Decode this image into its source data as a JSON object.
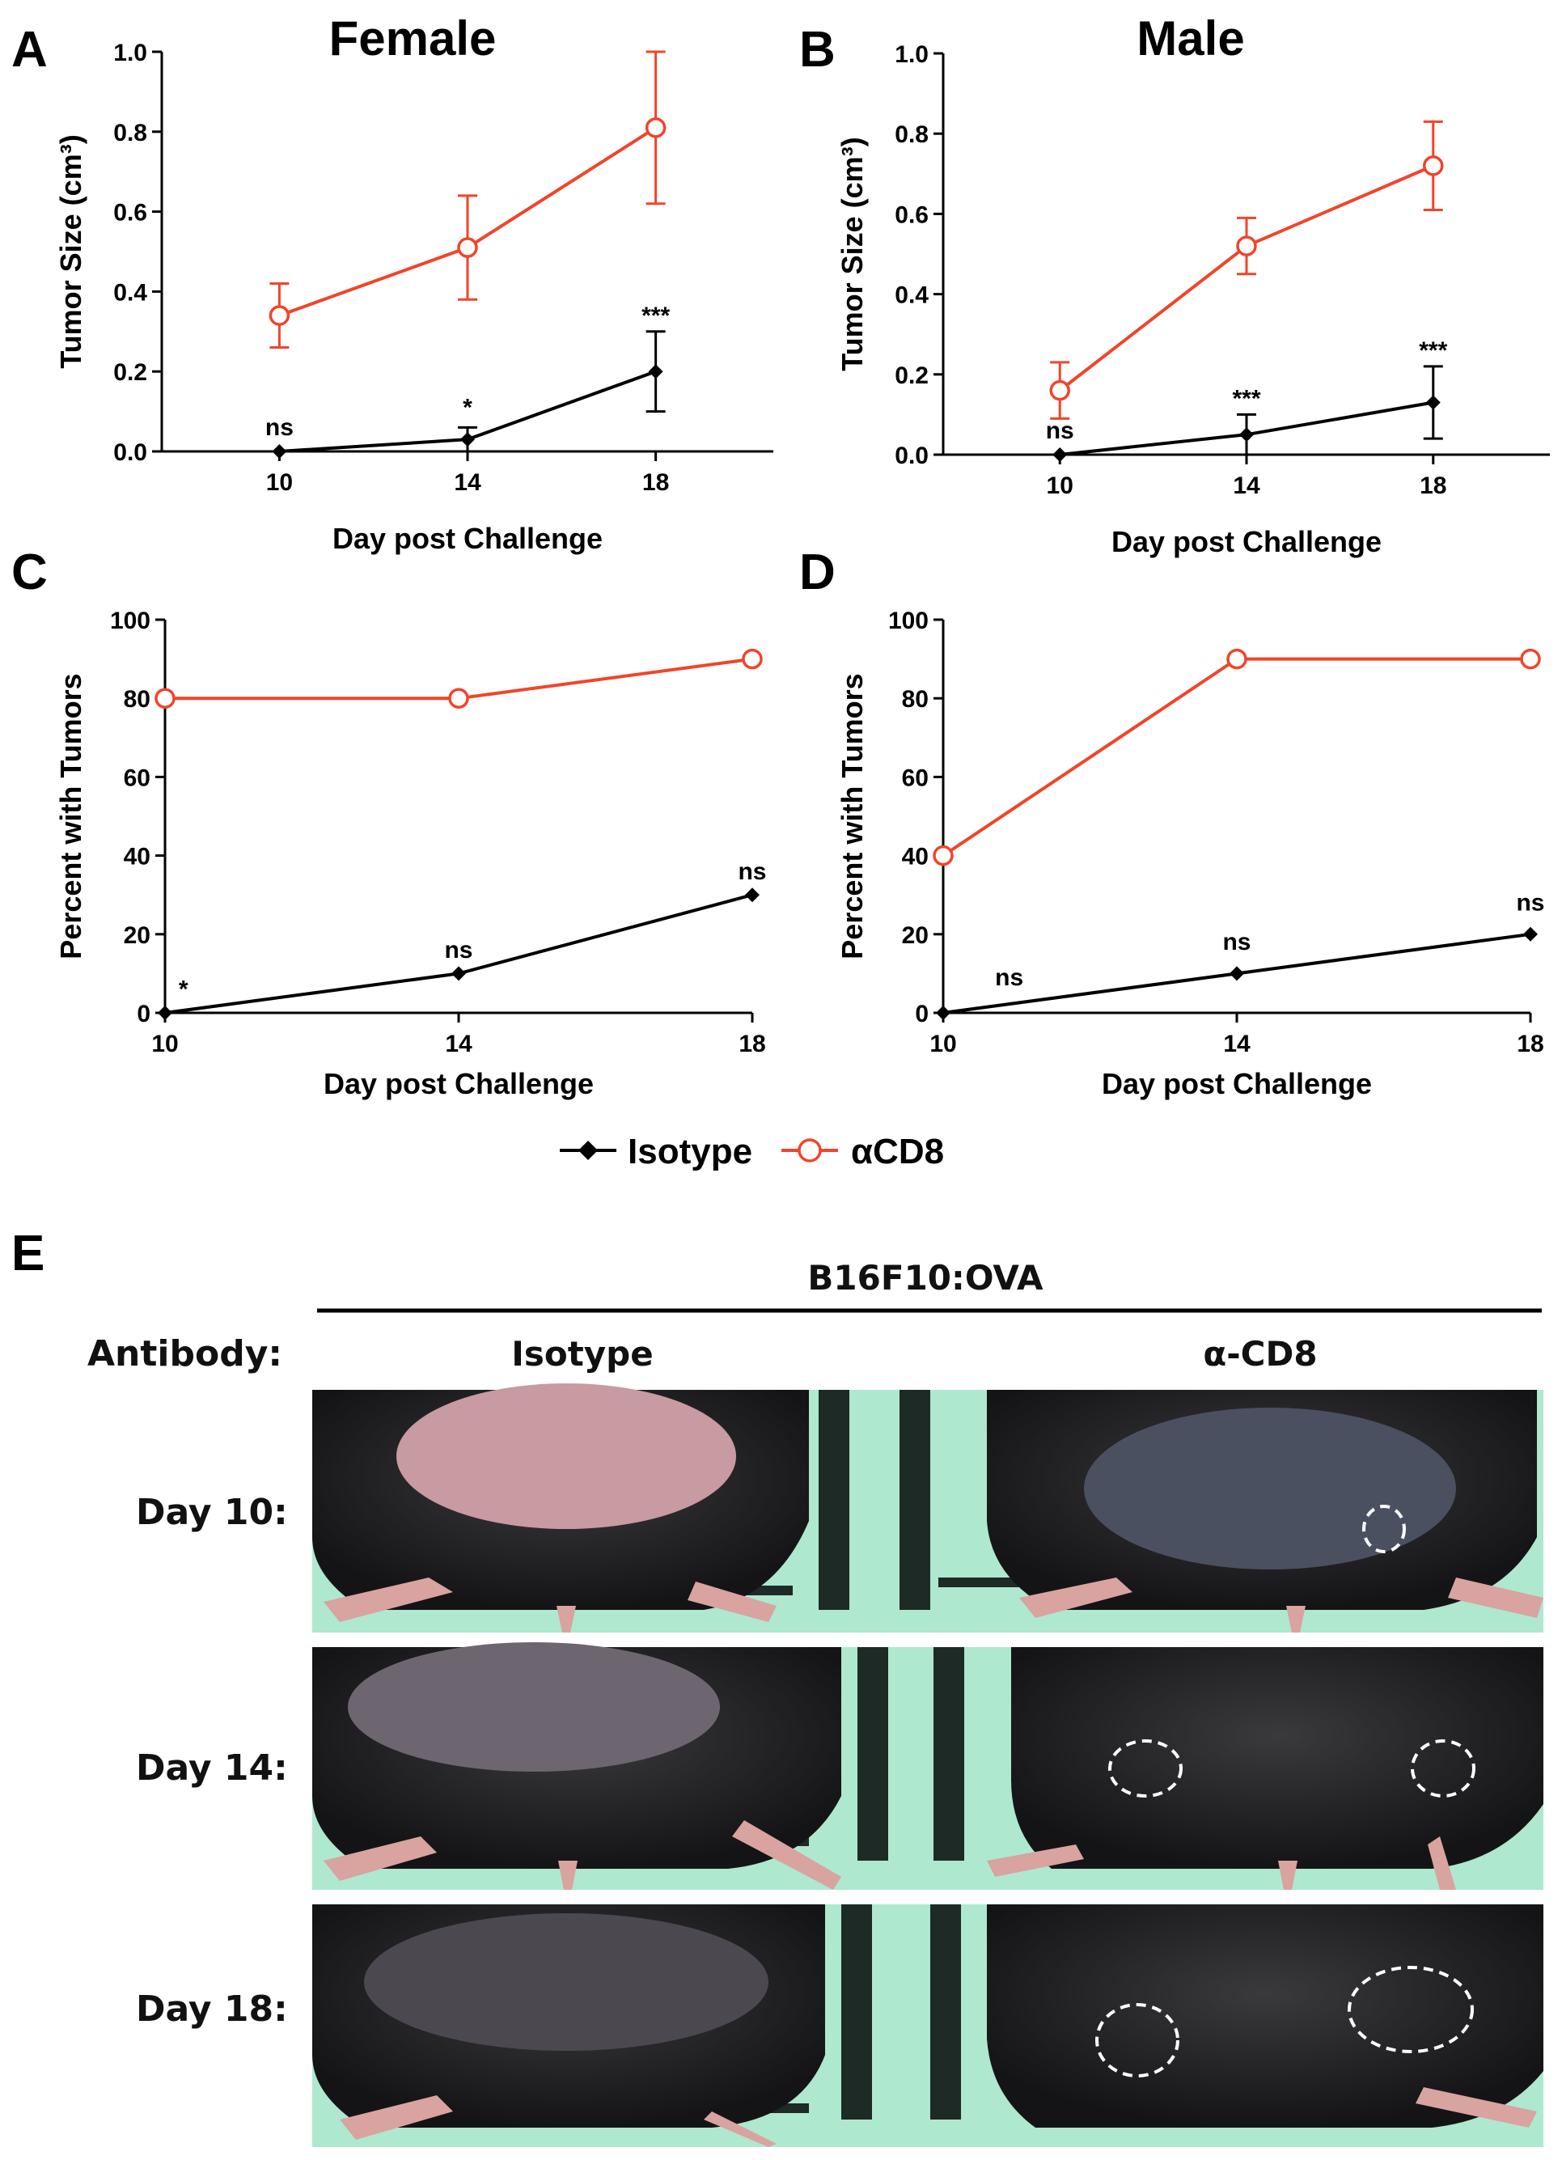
{
  "panels": {
    "A": {
      "label": "A",
      "title": "Female"
    },
    "B": {
      "label": "B",
      "title": "Male"
    },
    "C": {
      "label": "C"
    },
    "D": {
      "label": "D"
    },
    "E": {
      "label": "E"
    }
  },
  "chart_data": [
    {
      "id": "A",
      "type": "line",
      "title": "Female",
      "xlabel": "Day post Challenge",
      "ylabel": "Tumor Size (cm³)",
      "x": [
        10,
        14,
        18
      ],
      "xlim": [
        7.5,
        20.5
      ],
      "xticks": [
        10,
        14,
        18
      ],
      "ylim": [
        0,
        1.0
      ],
      "yticks": [
        "0.0",
        "0.2",
        "0.4",
        "0.6",
        "0.8",
        "1.0"
      ],
      "series": [
        {
          "name": "αCD8",
          "color": "#f0452a",
          "marker": "open-circle",
          "values": [
            0.34,
            0.51,
            0.81
          ],
          "err": [
            0.08,
            0.13,
            0.19
          ]
        },
        {
          "name": "Isotype",
          "color": "#000000",
          "marker": "filled-diamond",
          "values": [
            0.0,
            0.03,
            0.2
          ],
          "err": [
            0.0,
            0.03,
            0.1
          ]
        }
      ],
      "annotations": [
        {
          "x": 10,
          "text": "ns",
          "y": 0.04
        },
        {
          "x": 14,
          "text": "*",
          "y": 0.09
        },
        {
          "x": 18,
          "text": "***",
          "y": 0.32
        }
      ]
    },
    {
      "id": "B",
      "type": "line",
      "title": "Male",
      "xlabel": "Day post Challenge",
      "ylabel": "Tumor Size (cm³)",
      "x": [
        10,
        14,
        18
      ],
      "xlim": [
        7.5,
        20.5
      ],
      "xticks": [
        10,
        14,
        18
      ],
      "ylim": [
        0,
        1.0
      ],
      "yticks": [
        "0.0",
        "0.2",
        "0.4",
        "0.6",
        "0.8",
        "1.0"
      ],
      "series": [
        {
          "name": "αCD8",
          "color": "#f0452a",
          "marker": "open-circle",
          "values": [
            0.16,
            0.52,
            0.72
          ],
          "err": [
            0.07,
            0.07,
            0.11
          ]
        },
        {
          "name": "Isotype",
          "color": "#000000",
          "marker": "filled-diamond",
          "values": [
            0.0,
            0.05,
            0.13
          ],
          "err": [
            0.0,
            0.05,
            0.09
          ]
        }
      ],
      "annotations": [
        {
          "x": 10,
          "text": "ns",
          "y": 0.04
        },
        {
          "x": 14,
          "text": "***",
          "y": 0.12
        },
        {
          "x": 18,
          "text": "***",
          "y": 0.24
        }
      ]
    },
    {
      "id": "C",
      "type": "line",
      "xlabel": "Day post Challenge",
      "ylabel": "Percent with Tumors",
      "x": [
        10,
        14,
        18
      ],
      "xlim": [
        10,
        18
      ],
      "xticks": [
        10,
        14,
        18
      ],
      "ylim": [
        0,
        100
      ],
      "yticks": [
        "0",
        "20",
        "40",
        "60",
        "80",
        "100"
      ],
      "series": [
        {
          "name": "αCD8",
          "color": "#f0452a",
          "marker": "open-circle",
          "values": [
            80,
            80,
            90
          ]
        },
        {
          "name": "Isotype",
          "color": "#000000",
          "marker": "filled-diamond",
          "values": [
            0,
            10,
            30
          ]
        }
      ],
      "annotations": [
        {
          "x": 10.25,
          "text": "*",
          "y": 4
        },
        {
          "x": 14,
          "text": "ns",
          "y": 14
        },
        {
          "x": 18,
          "text": "ns",
          "y": 34
        }
      ]
    },
    {
      "id": "D",
      "type": "line",
      "xlabel": "Day post Challenge",
      "ylabel": "Percent with Tumors",
      "x": [
        10,
        14,
        18
      ],
      "xlim": [
        10,
        18
      ],
      "xticks": [
        10,
        14,
        18
      ],
      "ylim": [
        0,
        100
      ],
      "yticks": [
        "0",
        "20",
        "40",
        "60",
        "80",
        "100"
      ],
      "series": [
        {
          "name": "αCD8",
          "color": "#f0452a",
          "marker": "open-circle",
          "values": [
            40,
            90,
            90
          ]
        },
        {
          "name": "Isotype",
          "color": "#000000",
          "marker": "filled-diamond",
          "values": [
            0,
            10,
            20
          ]
        }
      ],
      "annotations": [
        {
          "x": 10.9,
          "text": "ns",
          "y": 7
        },
        {
          "x": 14,
          "text": "ns",
          "y": 16
        },
        {
          "x": 18,
          "text": "ns",
          "y": 26
        }
      ]
    }
  ],
  "legend": {
    "items": [
      {
        "name": "Isotype",
        "color": "#000000",
        "marker": "filled-diamond"
      },
      {
        "name": "αCD8",
        "color": "#f0452a",
        "marker": "open-circle"
      }
    ]
  },
  "photo_panel": {
    "group_header": "B16F10:OVA",
    "row_header": "Antibody:",
    "columns": [
      "Isotype",
      "α-CD8"
    ],
    "rows": [
      "Day 10:",
      "Day 14:",
      "Day 18:"
    ]
  }
}
